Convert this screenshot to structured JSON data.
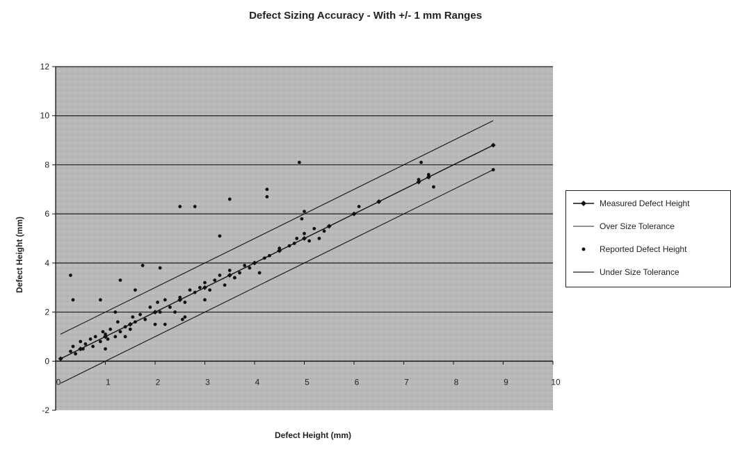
{
  "chart_data": {
    "type": "scatter",
    "title": "Defect Sizing Accuracy - With +/- 1 mm Ranges",
    "xlabel": "Defect Height (mm)",
    "ylabel": "Defect Height (mm)",
    "xlim": [
      0,
      10
    ],
    "ylim": [
      -2,
      12
    ],
    "x_ticks": [
      "0",
      "1",
      "2",
      "3",
      "4",
      "5",
      "6",
      "7",
      "8",
      "9",
      "10"
    ],
    "y_ticks": [
      "-2",
      "0",
      "2",
      "4",
      "6",
      "8",
      "10",
      "12"
    ],
    "grid": "horizontal",
    "legend_position": "right",
    "series": [
      {
        "name": "Measured Defect Height",
        "style": "line-marker",
        "x": [
          0.1,
          0.5,
          1,
          1.5,
          2,
          2.5,
          3,
          3.5,
          4,
          4.5,
          5,
          5.5,
          6,
          6.5,
          7.3,
          7.5,
          8.8
        ],
        "y": [
          0.1,
          0.5,
          1,
          1.5,
          2,
          2.5,
          3,
          3.5,
          4,
          4.5,
          5,
          5.5,
          6,
          6.5,
          7.3,
          7.5,
          8.8
        ]
      },
      {
        "name": "Over Size Tolerance",
        "style": "line",
        "x": [
          0.1,
          8.8
        ],
        "y": [
          1.1,
          9.8
        ]
      },
      {
        "name": "Reported Defect Height",
        "style": "points",
        "x": [
          0.3,
          0.35,
          0.4,
          0.5,
          0.55,
          0.6,
          0.7,
          0.75,
          0.8,
          0.9,
          0.95,
          1.0,
          1.05,
          1.1,
          1.2,
          1.25,
          1.3,
          1.4,
          1.5,
          1.55,
          1.6,
          1.7,
          1.8,
          1.9,
          2.0,
          2.05,
          2.1,
          2.2,
          2.3,
          2.4,
          2.5,
          2.55,
          2.6,
          2.7,
          2.8,
          2.9,
          3.0,
          3.1,
          3.2,
          3.3,
          3.4,
          3.5,
          3.6,
          3.7,
          3.8,
          3.9,
          4.0,
          4.1,
          4.2,
          4.3,
          4.5,
          4.7,
          4.8,
          4.85,
          5.0,
          5.1,
          5.2,
          5.3,
          5.4,
          5.5,
          6.0,
          6.1,
          6.5,
          7.3,
          7.35,
          7.5,
          7.6,
          8.8,
          0.3,
          0.35,
          0.9,
          1.3,
          1.6,
          1.75,
          2.0,
          2.1,
          2.5,
          2.8,
          3.3,
          3.5,
          4.25,
          4.25,
          4.9,
          4.95,
          5.0,
          1.0,
          1.2,
          1.4,
          2.2,
          2.6,
          3.0,
          3.6
        ],
        "y": [
          0.4,
          0.6,
          0.3,
          0.8,
          0.5,
          0.7,
          0.9,
          0.6,
          1.0,
          0.8,
          1.2,
          1.1,
          0.9,
          1.3,
          1.0,
          1.6,
          1.2,
          1.4,
          1.3,
          1.8,
          1.6,
          1.9,
          1.7,
          2.2,
          1.5,
          2.4,
          2.0,
          2.5,
          2.2,
          2.0,
          2.6,
          1.7,
          2.4,
          2.9,
          2.8,
          3.0,
          3.2,
          2.9,
          3.3,
          3.5,
          3.1,
          3.7,
          3.4,
          3.6,
          3.9,
          3.8,
          4.0,
          3.6,
          4.2,
          4.3,
          4.6,
          4.7,
          4.8,
          5.0,
          5.2,
          4.9,
          5.4,
          5.0,
          5.3,
          5.5,
          6.0,
          6.3,
          6.5,
          7.4,
          8.1,
          7.6,
          7.1,
          7.8,
          3.5,
          2.5,
          2.5,
          3.3,
          2.9,
          3.9,
          2.0,
          3.8,
          6.3,
          6.3,
          5.1,
          6.6,
          7.0,
          6.7,
          8.1,
          5.8,
          6.1,
          0.5,
          2.0,
          1.0,
          1.5,
          1.8,
          2.5,
          3.4
        ]
      },
      {
        "name": "Under Size Tolerance",
        "style": "line",
        "x": [
          0.1,
          8.8
        ],
        "y": [
          -0.9,
          7.8
        ]
      }
    ]
  }
}
